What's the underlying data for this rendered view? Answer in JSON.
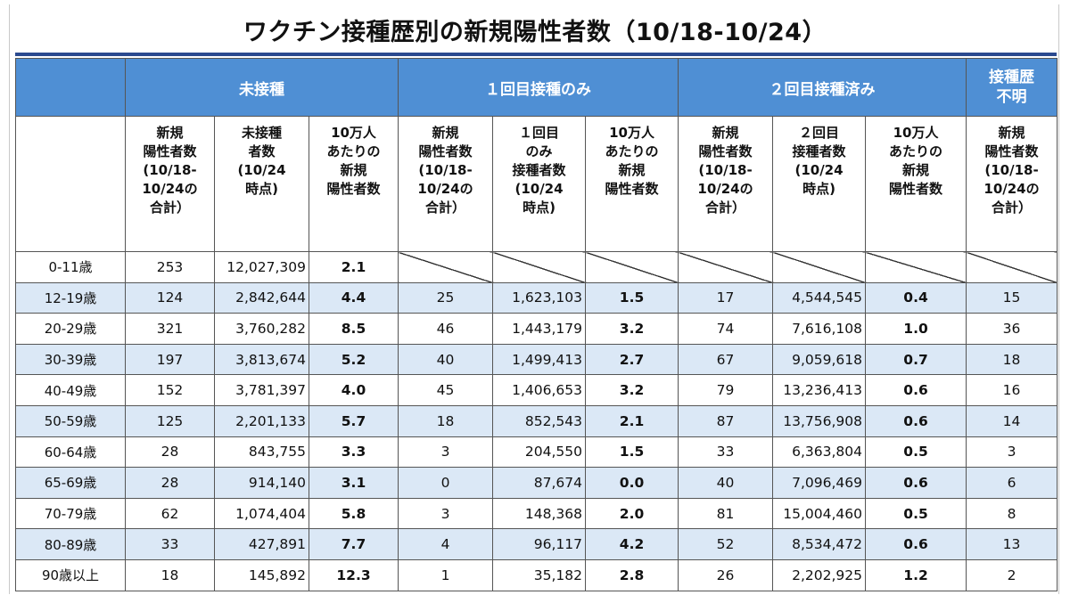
{
  "title": "ワクチン接種歴別の新規陽性者数（10/18-10/24）",
  "groups": {
    "unvaccinated": "未接種",
    "dose1": "１回目接種のみ",
    "dose2": "２回目接種済み",
    "unknown": "接種歴\n不明"
  },
  "subheaders": {
    "new_cases": "新規\n陽性者数\n(10/18-\n10/24の\n合計）",
    "unvax_count": "未接種\n者数\n(10/24\n時点)",
    "rate": "10万人\nあたりの\n新規\n陽性者数",
    "dose1_count": "１回目\nのみ\n接種者数\n(10/24\n時点)",
    "dose2_count": "２回目\n接種者数\n(10/24\n時点)"
  },
  "rows": [
    {
      "age": "0-11歳",
      "u_cases": "253",
      "u_pop": "12,027,309",
      "u_rate": "2.1",
      "d1_cases": "",
      "d1_pop": "",
      "d1_rate": "",
      "d2_cases": "",
      "d2_pop": "",
      "d2_rate": "",
      "unk": "",
      "na": true
    },
    {
      "age": "12-19歳",
      "u_cases": "124",
      "u_pop": "2,842,644",
      "u_rate": "4.4",
      "d1_cases": "25",
      "d1_pop": "1,623,103",
      "d1_rate": "1.5",
      "d2_cases": "17",
      "d2_pop": "4,544,545",
      "d2_rate": "0.4",
      "unk": "15"
    },
    {
      "age": "20-29歳",
      "u_cases": "321",
      "u_pop": "3,760,282",
      "u_rate": "8.5",
      "d1_cases": "46",
      "d1_pop": "1,443,179",
      "d1_rate": "3.2",
      "d2_cases": "74",
      "d2_pop": "7,616,108",
      "d2_rate": "1.0",
      "unk": "36"
    },
    {
      "age": "30-39歳",
      "u_cases": "197",
      "u_pop": "3,813,674",
      "u_rate": "5.2",
      "d1_cases": "40",
      "d1_pop": "1,499,413",
      "d1_rate": "2.7",
      "d2_cases": "67",
      "d2_pop": "9,059,618",
      "d2_rate": "0.7",
      "unk": "18"
    },
    {
      "age": "40-49歳",
      "u_cases": "152",
      "u_pop": "3,781,397",
      "u_rate": "4.0",
      "d1_cases": "45",
      "d1_pop": "1,406,653",
      "d1_rate": "3.2",
      "d2_cases": "79",
      "d2_pop": "13,236,413",
      "d2_rate": "0.6",
      "unk": "16"
    },
    {
      "age": "50-59歳",
      "u_cases": "125",
      "u_pop": "2,201,133",
      "u_rate": "5.7",
      "d1_cases": "18",
      "d1_pop": "852,543",
      "d1_rate": "2.1",
      "d2_cases": "87",
      "d2_pop": "13,756,908",
      "d2_rate": "0.6",
      "unk": "14"
    },
    {
      "age": "60-64歳",
      "u_cases": "28",
      "u_pop": "843,755",
      "u_rate": "3.3",
      "d1_cases": "3",
      "d1_pop": "204,550",
      "d1_rate": "1.5",
      "d2_cases": "33",
      "d2_pop": "6,363,804",
      "d2_rate": "0.5",
      "unk": "3"
    },
    {
      "age": "65-69歳",
      "u_cases": "28",
      "u_pop": "914,140",
      "u_rate": "3.1",
      "d1_cases": "0",
      "d1_pop": "87,674",
      "d1_rate": "0.0",
      "d2_cases": "40",
      "d2_pop": "7,096,469",
      "d2_rate": "0.6",
      "unk": "6"
    },
    {
      "age": "70-79歳",
      "u_cases": "62",
      "u_pop": "1,074,404",
      "u_rate": "5.8",
      "d1_cases": "3",
      "d1_pop": "148,368",
      "d1_rate": "2.0",
      "d2_cases": "81",
      "d2_pop": "15,004,460",
      "d2_rate": "0.5",
      "unk": "8"
    },
    {
      "age": "80-89歳",
      "u_cases": "33",
      "u_pop": "427,891",
      "u_rate": "7.7",
      "d1_cases": "4",
      "d1_pop": "96,117",
      "d1_rate": "4.2",
      "d2_cases": "52",
      "d2_pop": "8,534,472",
      "d2_rate": "0.6",
      "unk": "13"
    },
    {
      "age": "90歳以上",
      "u_cases": "18",
      "u_pop": "145,892",
      "u_rate": "12.3",
      "d1_cases": "1",
      "d1_pop": "35,182",
      "d1_rate": "2.8",
      "d2_cases": "26",
      "d2_pop": "2,202,925",
      "d2_rate": "1.2",
      "unk": "2"
    }
  ],
  "colors": {
    "header_blue": "#4f8fd4",
    "stripe": "#dbe8f6",
    "rule": "#2b4a8f"
  }
}
